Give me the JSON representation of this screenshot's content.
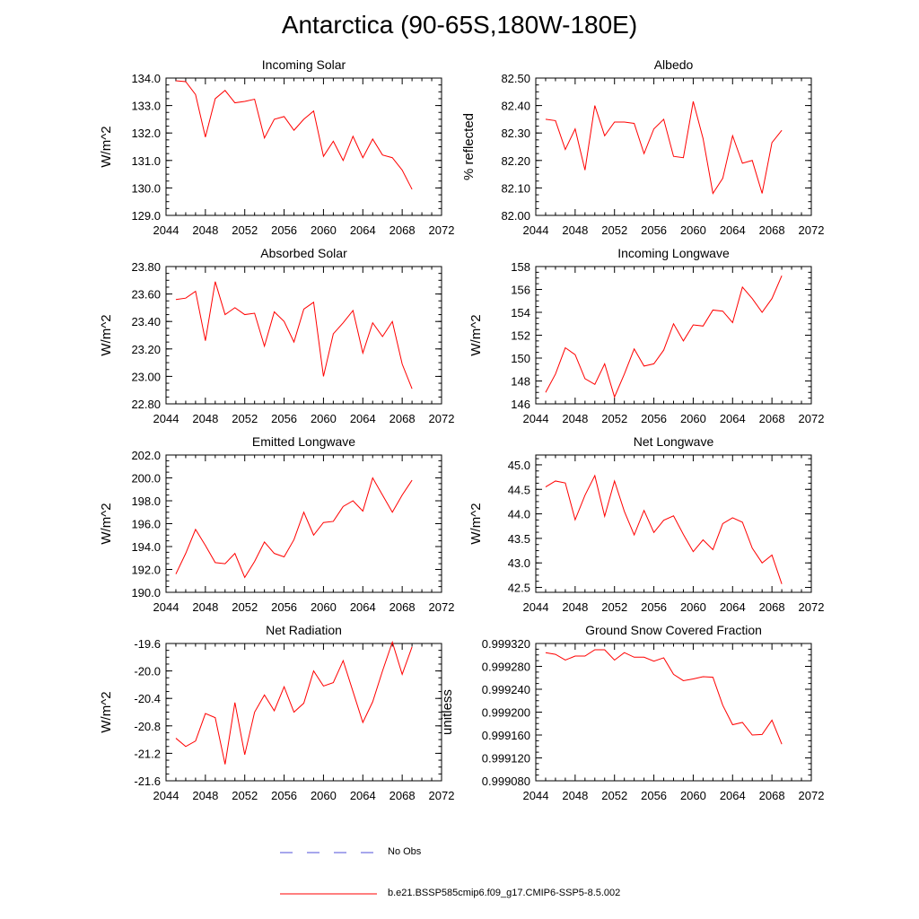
{
  "title": "Antarctica (90-65S,180W-180E)",
  "chart_data": [
    {
      "type": "line",
      "title": "Incoming Solar",
      "xlabel": "",
      "ylabel": "W/m^2",
      "xlim": [
        2044,
        2072
      ],
      "ylim": [
        129.0,
        134.0
      ],
      "xticks": [
        "2044",
        "2048",
        "2052",
        "2056",
        "2060",
        "2064",
        "2068",
        "2072"
      ],
      "yticks": [
        "129.0",
        "130.0",
        "131.0",
        "132.0",
        "133.0",
        "134.0"
      ],
      "x": [
        2045,
        2046,
        2047,
        2048,
        2049,
        2050,
        2051,
        2052,
        2053,
        2054,
        2055,
        2056,
        2057,
        2058,
        2059,
        2060,
        2061,
        2062,
        2063,
        2064,
        2065,
        2066,
        2067,
        2068,
        2069
      ],
      "series": [
        {
          "values": [
            133.9,
            133.87,
            133.4,
            131.85,
            133.25,
            133.55,
            133.1,
            133.15,
            133.23,
            131.82,
            132.5,
            132.6,
            132.1,
            132.5,
            132.8,
            131.15,
            131.7,
            131.0,
            131.88,
            131.1,
            131.78,
            131.2,
            131.1,
            130.65,
            129.95
          ],
          "color": "#ff0000"
        }
      ]
    },
    {
      "type": "line",
      "title": "Albedo",
      "xlabel": "",
      "ylabel": "% reflected",
      "xlim": [
        2044,
        2072
      ],
      "ylim": [
        82.0,
        82.5
      ],
      "xticks": [
        "2044",
        "2048",
        "2052",
        "2056",
        "2060",
        "2064",
        "2068",
        "2072"
      ],
      "yticks": [
        "82.00",
        "82.10",
        "82.20",
        "82.30",
        "82.40",
        "82.50"
      ],
      "x": [
        2045,
        2046,
        2047,
        2048,
        2049,
        2050,
        2051,
        2052,
        2053,
        2054,
        2055,
        2056,
        2057,
        2058,
        2059,
        2060,
        2061,
        2062,
        2063,
        2064,
        2065,
        2066,
        2067,
        2068,
        2069
      ],
      "series": [
        {
          "values": [
            82.35,
            82.345,
            82.24,
            82.315,
            82.165,
            82.4,
            82.29,
            82.34,
            82.34,
            82.335,
            82.225,
            82.315,
            82.35,
            82.215,
            82.21,
            82.415,
            82.28,
            82.08,
            82.135,
            82.29,
            82.19,
            82.2,
            82.08,
            82.265,
            82.31
          ],
          "color": "#ff0000"
        }
      ]
    },
    {
      "type": "line",
      "title": "Absorbed Solar",
      "xlabel": "",
      "ylabel": "W/m^2",
      "xlim": [
        2044,
        2072
      ],
      "ylim": [
        22.8,
        23.8
      ],
      "xticks": [
        "2044",
        "2048",
        "2052",
        "2056",
        "2060",
        "2064",
        "2068",
        "2072"
      ],
      "yticks": [
        "22.80",
        "23.00",
        "23.20",
        "23.40",
        "23.60",
        "23.80"
      ],
      "x": [
        2045,
        2046,
        2047,
        2048,
        2049,
        2050,
        2051,
        2052,
        2053,
        2054,
        2055,
        2056,
        2057,
        2058,
        2059,
        2060,
        2061,
        2062,
        2063,
        2064,
        2065,
        2066,
        2067,
        2068,
        2069
      ],
      "series": [
        {
          "values": [
            23.56,
            23.57,
            23.62,
            23.26,
            23.69,
            23.45,
            23.5,
            23.45,
            23.46,
            23.22,
            23.47,
            23.4,
            23.25,
            23.49,
            23.54,
            23.0,
            23.31,
            23.39,
            23.48,
            23.17,
            23.39,
            23.29,
            23.4,
            23.09,
            22.91
          ],
          "color": "#ff0000"
        }
      ]
    },
    {
      "type": "line",
      "title": "Incoming Longwave",
      "xlabel": "",
      "ylabel": "W/m^2",
      "xlim": [
        2044,
        2072
      ],
      "ylim": [
        146,
        158
      ],
      "xticks": [
        "2044",
        "2048",
        "2052",
        "2056",
        "2060",
        "2064",
        "2068",
        "2072"
      ],
      "yticks": [
        "146",
        "148",
        "150",
        "152",
        "154",
        "156",
        "158"
      ],
      "x": [
        2045,
        2046,
        2047,
        2048,
        2049,
        2050,
        2051,
        2052,
        2053,
        2054,
        2055,
        2056,
        2057,
        2058,
        2059,
        2060,
        2061,
        2062,
        2063,
        2064,
        2065,
        2066,
        2067,
        2068,
        2069
      ],
      "series": [
        {
          "values": [
            147.0,
            148.6,
            150.9,
            150.3,
            148.2,
            147.7,
            149.5,
            146.6,
            148.6,
            150.8,
            149.3,
            149.5,
            150.7,
            153.0,
            151.5,
            152.9,
            152.8,
            154.2,
            154.1,
            153.1,
            156.2,
            155.2,
            154.0,
            155.2,
            157.2
          ],
          "color": "#ff0000"
        }
      ]
    },
    {
      "type": "line",
      "title": "Emitted Longwave",
      "xlabel": "",
      "ylabel": "W/m^2",
      "xlim": [
        2044,
        2072
      ],
      "ylim": [
        190.0,
        202.0
      ],
      "xticks": [
        "2044",
        "2048",
        "2052",
        "2056",
        "2060",
        "2064",
        "2068",
        "2072"
      ],
      "yticks": [
        "190.0",
        "192.0",
        "194.0",
        "196.0",
        "198.0",
        "200.0",
        "202.0"
      ],
      "x": [
        2045,
        2046,
        2047,
        2048,
        2049,
        2050,
        2051,
        2052,
        2053,
        2054,
        2055,
        2056,
        2057,
        2058,
        2059,
        2060,
        2061,
        2062,
        2063,
        2064,
        2065,
        2066,
        2067,
        2068,
        2069
      ],
      "series": [
        {
          "values": [
            191.6,
            193.4,
            195.5,
            194.1,
            192.6,
            192.5,
            193.4,
            191.3,
            192.7,
            194.4,
            193.4,
            193.1,
            194.6,
            197.0,
            195.0,
            196.1,
            196.2,
            197.5,
            198.0,
            197.1,
            200.0,
            198.5,
            197.0,
            198.5,
            199.8
          ],
          "color": "#ff0000"
        }
      ]
    },
    {
      "type": "line",
      "title": "Net Longwave",
      "xlabel": "",
      "ylabel": "W/m^2",
      "xlim": [
        2044,
        2072
      ],
      "ylim": [
        42.4,
        45.2
      ],
      "xticks": [
        "2044",
        "2048",
        "2052",
        "2056",
        "2060",
        "2064",
        "2068",
        "2072"
      ],
      "yticks": [
        "42.5",
        "43.0",
        "43.5",
        "44.0",
        "44.5",
        "45.0"
      ],
      "x": [
        2045,
        2046,
        2047,
        2048,
        2049,
        2050,
        2051,
        2052,
        2053,
        2054,
        2055,
        2056,
        2057,
        2058,
        2059,
        2060,
        2061,
        2062,
        2063,
        2064,
        2065,
        2066,
        2067,
        2068,
        2069
      ],
      "series": [
        {
          "values": [
            44.55,
            44.67,
            44.63,
            43.88,
            44.38,
            44.78,
            43.95,
            44.67,
            44.05,
            43.57,
            44.07,
            43.62,
            43.87,
            43.96,
            43.58,
            43.23,
            43.47,
            43.27,
            43.8,
            43.92,
            43.83,
            43.3,
            43.0,
            43.16,
            42.57
          ],
          "color": "#ff0000"
        }
      ]
    },
    {
      "type": "line",
      "title": "Net Radiation",
      "xlabel": "",
      "ylabel": "W/m^2",
      "xlim": [
        2044,
        2072
      ],
      "ylim": [
        -21.6,
        -19.6
      ],
      "xticks": [
        "2044",
        "2048",
        "2052",
        "2056",
        "2060",
        "2064",
        "2068",
        "2072"
      ],
      "yticks": [
        "-21.6",
        "-21.2",
        "-20.8",
        "-20.4",
        "-20.0",
        "-19.6"
      ],
      "x": [
        2045,
        2046,
        2047,
        2048,
        2049,
        2050,
        2051,
        2052,
        2053,
        2054,
        2055,
        2056,
        2057,
        2058,
        2059,
        2060,
        2061,
        2062,
        2063,
        2064,
        2065,
        2066,
        2067,
        2068,
        2069
      ],
      "series": [
        {
          "values": [
            -20.98,
            -21.1,
            -21.02,
            -20.62,
            -20.68,
            -21.36,
            -20.46,
            -21.22,
            -20.6,
            -20.35,
            -20.58,
            -20.23,
            -20.6,
            -20.47,
            -20.0,
            -20.22,
            -20.17,
            -19.85,
            -20.3,
            -20.75,
            -20.45,
            -20.0,
            -19.58,
            -20.05,
            -19.65
          ],
          "color": "#ff0000"
        }
      ]
    },
    {
      "type": "line",
      "title": "Ground Snow Covered Fraction",
      "xlabel": "",
      "ylabel": "unitless",
      "xlim": [
        2044,
        2072
      ],
      "ylim": [
        0.99908,
        0.99932
      ],
      "xticks": [
        "2044",
        "2048",
        "2052",
        "2056",
        "2060",
        "2064",
        "2068",
        "2072"
      ],
      "yticks": [
        "0.999080",
        "0.999120",
        "0.999160",
        "0.999200",
        "0.999240",
        "0.999280",
        "0.999320"
      ],
      "x": [
        2045,
        2046,
        2047,
        2048,
        2049,
        2050,
        2051,
        2052,
        2053,
        2054,
        2055,
        2056,
        2057,
        2058,
        2059,
        2060,
        2061,
        2062,
        2063,
        2064,
        2065,
        2066,
        2067,
        2068,
        2069
      ],
      "series": [
        {
          "values": [
            0.999304,
            0.999301,
            0.999291,
            0.999298,
            0.999298,
            0.999309,
            0.999309,
            0.999291,
            0.999304,
            0.999296,
            0.999296,
            0.999289,
            0.999295,
            0.999266,
            0.999255,
            0.999258,
            0.999262,
            0.999261,
            0.999212,
            0.999178,
            0.999182,
            0.99916,
            0.999161,
            0.999186,
            0.999144
          ],
          "color": "#ff0000"
        }
      ]
    }
  ],
  "legend": [
    {
      "label": "No Obs",
      "color": "#4f4fd8",
      "dash": "dashed"
    },
    {
      "label": "b.e21.BSSP585cmip6.f09_g17.CMIP6-SSP5-8.5.002",
      "color": "#ff0000",
      "dash": "solid"
    }
  ]
}
